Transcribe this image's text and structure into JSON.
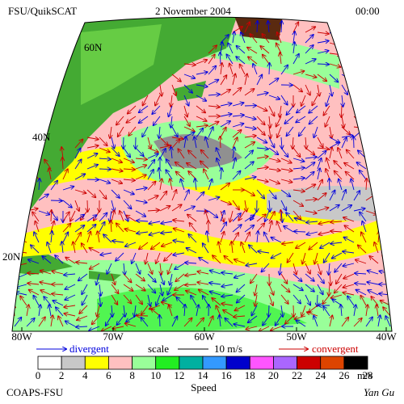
{
  "header": {
    "title": "FSU/QuikSCAT",
    "date": "2 November 2004",
    "time": "00:00"
  },
  "map": {
    "lat_labels": [
      "60N",
      "40N",
      "20N"
    ],
    "lon_labels": [
      "80W",
      "70W",
      "60W",
      "50W",
      "40W"
    ]
  },
  "legend": {
    "divergent": "divergent",
    "scale": "scale",
    "scale_value": "10 m/s",
    "convergent": "convergent"
  },
  "colorbar": {
    "ticks": [
      0,
      2,
      4,
      6,
      8,
      10,
      12,
      14,
      16,
      18,
      20,
      22,
      24,
      26,
      28
    ],
    "colors": [
      "#ffffff",
      "#c8c8c8",
      "#ffff00",
      "#ffc0c0",
      "#99ff99",
      "#22ee22",
      "#00b0a0",
      "#3399ff",
      "#0000cc",
      "#ff55ff",
      "#aa66ff",
      "#cc0000",
      "#dd4400",
      "#000000"
    ],
    "unit": "m/s",
    "label": "Speed"
  },
  "footer": {
    "left": "COAPS-FSU",
    "right": "Yan Gu"
  }
}
